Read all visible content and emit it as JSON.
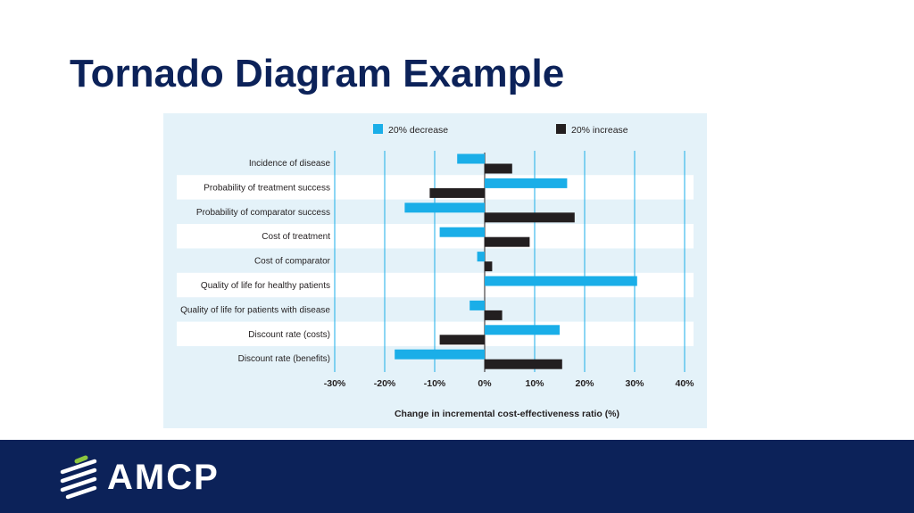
{
  "slide": {
    "title": "Tornado Diagram Example"
  },
  "footer": {
    "logo_text": "AMCP",
    "logo_icon": "amcp-stripes-icon"
  },
  "colors": {
    "title": "#0c2259",
    "footer_bg": "#0c2259",
    "panel_bg": "#e4f2f9",
    "row_alt": "#ffffff",
    "decrease": "#1aaee8",
    "increase": "#231f20",
    "gridline": "#1aaee8",
    "logo_accent": "#8cc63f"
  },
  "chart_data": {
    "type": "bar",
    "orientation": "horizontal",
    "title": "",
    "xlabel": "Change in incremental cost-effectiveness ratio (%)",
    "ylabel": "",
    "xlim": [
      -30,
      40
    ],
    "xticks": [
      -30,
      -20,
      -10,
      0,
      10,
      20,
      30,
      40
    ],
    "xtick_labels": [
      "-30%",
      "-20%",
      "-10%",
      "0%",
      "10%",
      "20%",
      "30%",
      "40%"
    ],
    "grid": true,
    "legend_position": "top",
    "categories": [
      "Incidence of disease",
      "Probability of treatment success",
      "Probability of comparator success",
      "Cost of treatment",
      "Cost of comparator",
      "Quality of life for healthy patients",
      "Quality of life for patients with disease",
      "Discount rate (costs)",
      "Discount rate (benefits)"
    ],
    "series": [
      {
        "name": "20% decrease",
        "values": [
          -5.5,
          16.5,
          -16,
          -9,
          -1.5,
          30.5,
          -3,
          15,
          -18
        ]
      },
      {
        "name": "20% increase",
        "values": [
          5.5,
          -11,
          18,
          9,
          1.5,
          0,
          3.5,
          -9,
          15.5
        ]
      }
    ]
  }
}
